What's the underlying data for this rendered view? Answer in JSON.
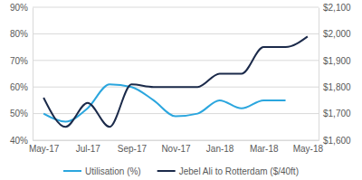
{
  "chart_data": {
    "type": "line",
    "categories": [
      "May-17",
      null,
      "Jul-17",
      null,
      "Sep-17",
      null,
      "Nov-17",
      null,
      "Jan-18",
      null,
      "Mar-18",
      null,
      "May-18"
    ],
    "series": [
      {
        "name": "Utilisation (%)",
        "color": "#2ba6de",
        "values": [
          50,
          47,
          52,
          61,
          60,
          55,
          49,
          50,
          55,
          52,
          55,
          55,
          null
        ]
      },
      {
        "name": "Jebel Ali to Rotterdam ($/40ft)",
        "color": "#1b2a4a",
        "axis": "y2",
        "values": [
          1760,
          1650,
          1740,
          1650,
          1810,
          1800,
          1800,
          1800,
          1850,
          1850,
          1950,
          1950,
          1990
        ]
      }
    ],
    "ylim": [
      40,
      90
    ],
    "yticks": [
      {
        "value": 40,
        "label": "40%"
      },
      {
        "value": 50,
        "label": "50%"
      },
      {
        "value": 60,
        "label": "60%"
      },
      {
        "value": 70,
        "label": "70%"
      },
      {
        "value": 80,
        "label": "80%"
      },
      {
        "value": 90,
        "label": "90%"
      }
    ],
    "y2lim": [
      1600,
      2100
    ],
    "y2ticks": [
      {
        "value": 1600,
        "label": "$1,600"
      },
      {
        "value": 1700,
        "label": "$1,700"
      },
      {
        "value": 1800,
        "label": "$1,800"
      },
      {
        "value": 1900,
        "label": "$1,900"
      },
      {
        "value": 2000,
        "label": "$2,000"
      },
      {
        "value": 2100,
        "label": "$2,100"
      }
    ],
    "grid": true,
    "legend": "bottom",
    "line_style": "smooth"
  }
}
